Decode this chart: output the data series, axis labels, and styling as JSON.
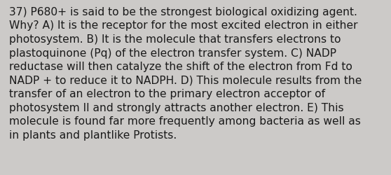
{
  "lines": [
    "37) P680+ is said to be the strongest biological oxidizing agent.",
    "Why? A) It is the receptor for the most excited electron in either",
    "photosystem. B) It is the molecule that transfers electrons to",
    "plastoquinone (Pq) of the electron transfer system. C) NADP",
    "reductase will then catalyze the shift of the electron from Fd to",
    "NADP + to reduce it to NADPH. D) This molecule results from the",
    "transfer of an electron to the primary electron acceptor of",
    "photosystem II and strongly attracts another electron. E) This",
    "molecule is found far more frequently among bacteria as well as",
    "in plants and plantlike Protists."
  ],
  "background_color": "#cccaC8",
  "text_color": "#1a1a1a",
  "font_size": 11.2,
  "fig_width": 5.58,
  "fig_height": 2.51,
  "dpi": 100
}
